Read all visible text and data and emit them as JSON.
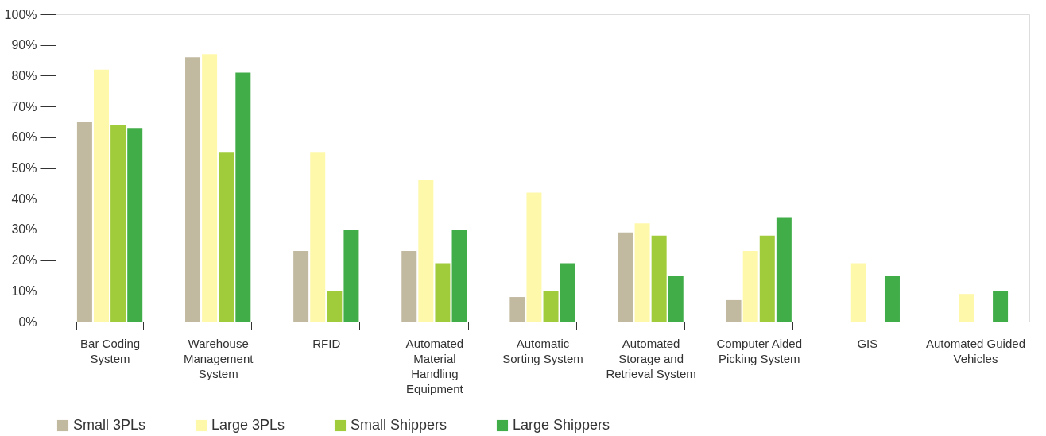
{
  "chart_data": {
    "type": "bar",
    "categories": [
      "Bar Coding System",
      "Warehouse Management System",
      "RFID",
      "Automated Material Handling Equipment",
      "Automatic Sorting System",
      "Automated Storage and Retrieval System",
      "Computer Aided Picking System",
      "GIS",
      "Automated Guided Vehicles"
    ],
    "series": [
      {
        "name": "Small 3PLs",
        "color": "#c2b9a1",
        "values": [
          65,
          86,
          23,
          23,
          8,
          29,
          7,
          null,
          null
        ]
      },
      {
        "name": "Large 3PLs",
        "color": "#fef8ab",
        "values": [
          82,
          87,
          55,
          46,
          42,
          32,
          23,
          19,
          9
        ]
      },
      {
        "name": "Small Shippers",
        "color": "#a0cc3b",
        "values": [
          64,
          55,
          10,
          19,
          10,
          28,
          28,
          null,
          null
        ]
      },
      {
        "name": "Large Shippers",
        "color": "#40ad48",
        "values": [
          63,
          81,
          30,
          30,
          19,
          15,
          34,
          15,
          10
        ]
      }
    ],
    "ylim": [
      0,
      100
    ],
    "yticks": [
      {
        "value": 0,
        "label": "0%"
      },
      {
        "value": 10,
        "label": "10%"
      },
      {
        "value": 20,
        "label": "20%"
      },
      {
        "value": 30,
        "label": "30%"
      },
      {
        "value": 40,
        "label": "40%"
      },
      {
        "value": 50,
        "label": "50%"
      },
      {
        "value": 60,
        "label": "60%"
      },
      {
        "value": 70,
        "label": "70%"
      },
      {
        "value": 80,
        "label": "80%"
      },
      {
        "value": 90,
        "label": "90%"
      },
      {
        "value": 100,
        "label": "100%"
      }
    ],
    "grid": false,
    "legend": "bottom"
  }
}
